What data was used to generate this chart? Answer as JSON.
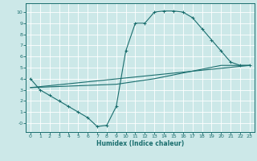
{
  "xlabel": "Humidex (Indice chaleur)",
  "bg_color": "#cce8e8",
  "grid_color": "#ffffff",
  "line_color": "#1a6e6e",
  "xlim": [
    -0.5,
    23.5
  ],
  "ylim": [
    -0.8,
    10.8
  ],
  "xticks": [
    0,
    1,
    2,
    3,
    4,
    5,
    6,
    7,
    8,
    9,
    10,
    11,
    12,
    13,
    14,
    15,
    16,
    17,
    18,
    19,
    20,
    21,
    22,
    23
  ],
  "ytick_labels": [
    "-0",
    "1",
    "2",
    "3",
    "4",
    "5",
    "6",
    "7",
    "8",
    "9",
    "10"
  ],
  "ytick_vals": [
    0,
    1,
    2,
    3,
    4,
    5,
    6,
    7,
    8,
    9,
    10
  ],
  "line1_x": [
    0,
    1,
    2,
    3,
    4,
    5,
    6,
    7,
    8,
    9,
    10,
    11,
    12,
    13,
    14,
    15,
    16,
    17,
    18,
    19,
    20,
    21,
    22,
    23
  ],
  "line1_y": [
    4.0,
    3.0,
    2.5,
    2.0,
    1.5,
    1.0,
    0.5,
    -0.3,
    -0.2,
    1.5,
    6.5,
    9.0,
    9.0,
    10.0,
    10.1,
    10.1,
    10.0,
    9.5,
    8.5,
    7.5,
    6.5,
    5.5,
    5.2,
    5.2
  ],
  "line2_x": [
    0,
    23
  ],
  "line2_y": [
    3.2,
    5.2
  ],
  "line3_x": [
    0,
    9,
    13,
    20,
    23
  ],
  "line3_y": [
    3.2,
    3.5,
    4.0,
    5.2,
    5.2
  ]
}
